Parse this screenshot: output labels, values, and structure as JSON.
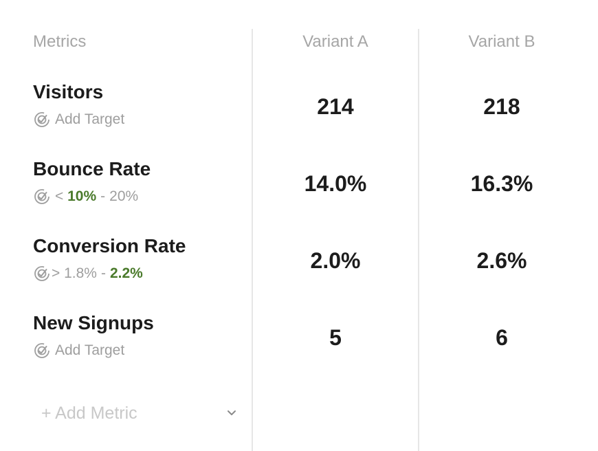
{
  "headers": {
    "metrics": "Metrics",
    "variant_a": "Variant A",
    "variant_b": "Variant B"
  },
  "metrics": [
    {
      "name": "Visitors",
      "target": {
        "type": "add",
        "label": "Add Target"
      },
      "variant_a": "214",
      "variant_b": "218"
    },
    {
      "name": "Bounce Rate",
      "target": {
        "type": "range",
        "operator": "<",
        "good": "10%",
        "separator": "-",
        "bad": "20%"
      },
      "variant_a": "14.0%",
      "variant_b": "16.3%"
    },
    {
      "name": "Conversion Rate",
      "target": {
        "type": "range",
        "operator": ">",
        "low": "1.8%",
        "separator": "-",
        "good": "2.2%"
      },
      "variant_a": "2.0%",
      "variant_b": "2.6%"
    },
    {
      "name": "New Signups",
      "target": {
        "type": "add",
        "label": "Add Target"
      },
      "variant_a": "5",
      "variant_b": "6"
    }
  ],
  "add_metric": {
    "label": "+ Add Metric",
    "icon": "chevron-down-icon"
  },
  "colors": {
    "good": "#4a7a2b",
    "muted": "#9e9e9e",
    "header": "#a6a6a6",
    "divider": "#e6e6e6"
  },
  "icons": {
    "target": "target-icon"
  }
}
